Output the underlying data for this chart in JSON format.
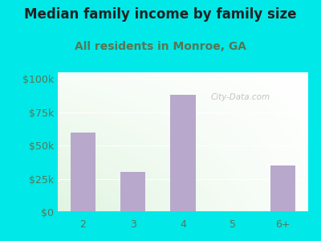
{
  "title": "Median family income by family size",
  "subtitle": "All residents in Monroe, GA",
  "categories": [
    "2",
    "3",
    "4",
    "5",
    "6+"
  ],
  "values": [
    60000,
    30000,
    88000,
    0,
    35000
  ],
  "bar_color": "#b8a8cc",
  "background_outer": "#00e8e8",
  "background_inner_top_left": "#c8ecc0",
  "background_inner_bottom_right": "#f0f8f0",
  "title_color": "#222222",
  "subtitle_color": "#557755",
  "axis_label_color": "#557755",
  "yticks": [
    0,
    25000,
    50000,
    75000,
    100000
  ],
  "ytick_labels": [
    "$0",
    "$25k",
    "$50k",
    "$75k",
    "$100k"
  ],
  "ylim": [
    0,
    105000
  ],
  "title_fontsize": 12,
  "subtitle_fontsize": 10,
  "tick_fontsize": 9,
  "watermark": "City-Data.com"
}
